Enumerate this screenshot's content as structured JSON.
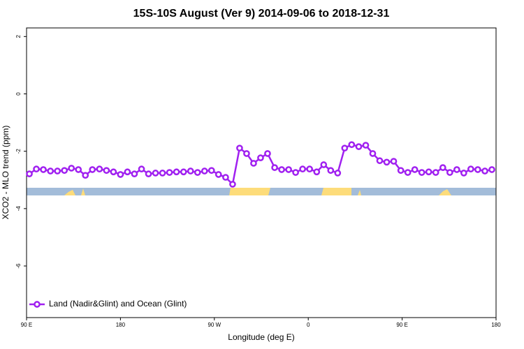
{
  "chart_data": {
    "type": "line",
    "title": "15S-10S August (Ver 9)   2014-09-06 to 2018-12-31",
    "x_label": "Longitude (deg E)",
    "y_label": "XCO2 - MLO trend (ppm)",
    "x": [
      92.7,
      99.4,
      106.1,
      112.9,
      119.6,
      126.3,
      133.0,
      139.7,
      146.4,
      153.1,
      159.9,
      166.6,
      173.3,
      180.0,
      186.7,
      193.4,
      200.2,
      206.9,
      213.6,
      220.3,
      227.0,
      233.7,
      240.5,
      247.2,
      253.9,
      260.6,
      267.3,
      274.0,
      280.8,
      287.5,
      294.2,
      300.9,
      307.6,
      314.3,
      321.0,
      327.8,
      334.5,
      341.2,
      347.9,
      354.6,
      361.3,
      368.1,
      374.8,
      381.5,
      388.2,
      394.9,
      401.6,
      408.4,
      415.1,
      421.8,
      428.5,
      435.2,
      441.9,
      448.7,
      455.4,
      462.1,
      468.8,
      475.5,
      482.2,
      489.0,
      495.7,
      502.4,
      509.1,
      515.8,
      522.5,
      529.3,
      536.0
    ],
    "series": [
      {
        "name": "Land (Nadir&Glint) and Ocean (Glint)",
        "color": "#a020f0",
        "values": [
          -2.79,
          -2.62,
          -2.64,
          -2.69,
          -2.69,
          -2.67,
          -2.59,
          -2.64,
          -2.84,
          -2.64,
          -2.62,
          -2.67,
          -2.72,
          -2.81,
          -2.72,
          -2.79,
          -2.62,
          -2.79,
          -2.76,
          -2.76,
          -2.74,
          -2.72,
          -2.72,
          -2.69,
          -2.74,
          -2.69,
          -2.67,
          -2.81,
          -2.91,
          -3.15,
          -1.89,
          -2.08,
          -2.42,
          -2.23,
          -2.08,
          -2.57,
          -2.64,
          -2.64,
          -2.74,
          -2.62,
          -2.62,
          -2.72,
          -2.47,
          -2.67,
          -2.76,
          -1.89,
          -1.77,
          -1.84,
          -1.79,
          -2.08,
          -2.33,
          -2.38,
          -2.35,
          -2.67,
          -2.74,
          -2.64,
          -2.74,
          -2.72,
          -2.74,
          -2.57,
          -2.74,
          -2.64,
          -2.76,
          -2.62,
          -2.64,
          -2.69,
          -2.64
        ]
      }
    ],
    "xlim": [
      90,
      540
    ],
    "xticks": [
      {
        "value": 90,
        "label": "90 E"
      },
      {
        "value": 180,
        "label": "180"
      },
      {
        "value": 270,
        "label": "90 W"
      },
      {
        "value": 360,
        "label": "0"
      },
      {
        "value": 450,
        "label": "90 E"
      },
      {
        "value": 540,
        "label": "180"
      }
    ],
    "ylim": [
      -7.8,
      2.3
    ],
    "yticks": [
      2,
      0,
      -2,
      -4,
      -6
    ],
    "legend": "bottom-left"
  }
}
